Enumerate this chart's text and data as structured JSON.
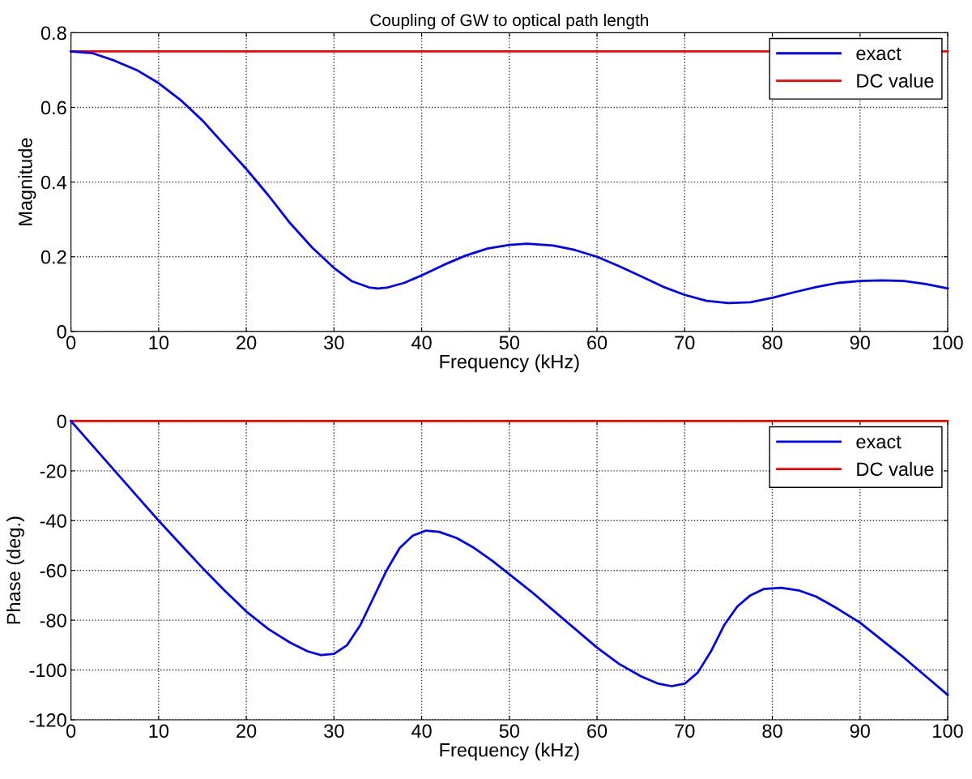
{
  "chart_data": [
    {
      "type": "line",
      "title": "Coupling of GW to optical path length",
      "xlabel": "Frequency (kHz)",
      "ylabel": "Magnitude",
      "xlim": [
        0,
        100
      ],
      "ylim": [
        0,
        0.8
      ],
      "xticks": [
        0,
        10,
        20,
        30,
        40,
        50,
        60,
        70,
        80,
        90,
        100
      ],
      "yticks": [
        0,
        0.2,
        0.4,
        0.6,
        0.8
      ],
      "grid": true,
      "legend": "top right",
      "line_style": "solid",
      "series": [
        {
          "name": "exact",
          "color": "#0000ff",
          "x": [
            0,
            2.5,
            5,
            7.5,
            10,
            12.5,
            15,
            17.5,
            20,
            22.5,
            25,
            27.5,
            30,
            32,
            34,
            35,
            36,
            38,
            40,
            42.5,
            45,
            47.5,
            50,
            52,
            55,
            57.5,
            60,
            62.5,
            65,
            67.5,
            70,
            72.5,
            75,
            77.5,
            80,
            82.5,
            85,
            87.5,
            90,
            92.5,
            95,
            97.5,
            100
          ],
          "values": [
            0.75,
            0.745,
            0.725,
            0.7,
            0.665,
            0.62,
            0.565,
            0.5,
            0.435,
            0.365,
            0.29,
            0.225,
            0.17,
            0.135,
            0.118,
            0.115,
            0.117,
            0.13,
            0.15,
            0.178,
            0.203,
            0.222,
            0.232,
            0.235,
            0.23,
            0.218,
            0.2,
            0.175,
            0.148,
            0.12,
            0.098,
            0.082,
            0.076,
            0.078,
            0.09,
            0.105,
            0.119,
            0.13,
            0.135,
            0.137,
            0.135,
            0.127,
            0.115
          ]
        },
        {
          "name": "DC value",
          "color": "#ff0000",
          "x": [
            0,
            100
          ],
          "values": [
            0.75,
            0.75
          ]
        }
      ]
    },
    {
      "type": "line",
      "xlabel": "Frequency (kHz)",
      "ylabel": "Phase (deg.)",
      "xlim": [
        0,
        100
      ],
      "ylim": [
        -120,
        0
      ],
      "xticks": [
        0,
        10,
        20,
        30,
        40,
        50,
        60,
        70,
        80,
        90,
        100
      ],
      "yticks": [
        -120,
        -100,
        -80,
        -60,
        -40,
        -20,
        0
      ],
      "grid": true,
      "legend": "top right",
      "line_style": "solid",
      "series": [
        {
          "name": "exact",
          "color": "#0000ff",
          "x": [
            0,
            2.5,
            5,
            7.5,
            10,
            12.5,
            15,
            17.5,
            20,
            22.5,
            25,
            27,
            28.5,
            30,
            31.5,
            33,
            34.5,
            36,
            37.5,
            39,
            40.5,
            42,
            44,
            46,
            48,
            50,
            52.5,
            55,
            57.5,
            60,
            62.5,
            65,
            67,
            68.5,
            70,
            71.5,
            73,
            74.5,
            76,
            77.5,
            79,
            81,
            83,
            85,
            87.5,
            90,
            92.5,
            95,
            97.5,
            100
          ],
          "values": [
            0,
            -10,
            -20,
            -30,
            -40,
            -49.5,
            -59,
            -68,
            -76.5,
            -83.5,
            -89,
            -92.5,
            -94,
            -93.5,
            -90,
            -82,
            -71,
            -60,
            -51,
            -46,
            -44,
            -44.5,
            -47,
            -51,
            -56,
            -61.5,
            -68.5,
            -76,
            -83.5,
            -91,
            -97.5,
            -102.5,
            -105.5,
            -106.5,
            -105.5,
            -101,
            -92.5,
            -82,
            -74.5,
            -70,
            -67.5,
            -67,
            -68,
            -70.5,
            -75.5,
            -81,
            -88,
            -95,
            -102.5,
            -110
          ]
        },
        {
          "name": "DC value",
          "color": "#ff0000",
          "x": [
            0,
            100
          ],
          "values": [
            0,
            0
          ]
        }
      ]
    }
  ]
}
